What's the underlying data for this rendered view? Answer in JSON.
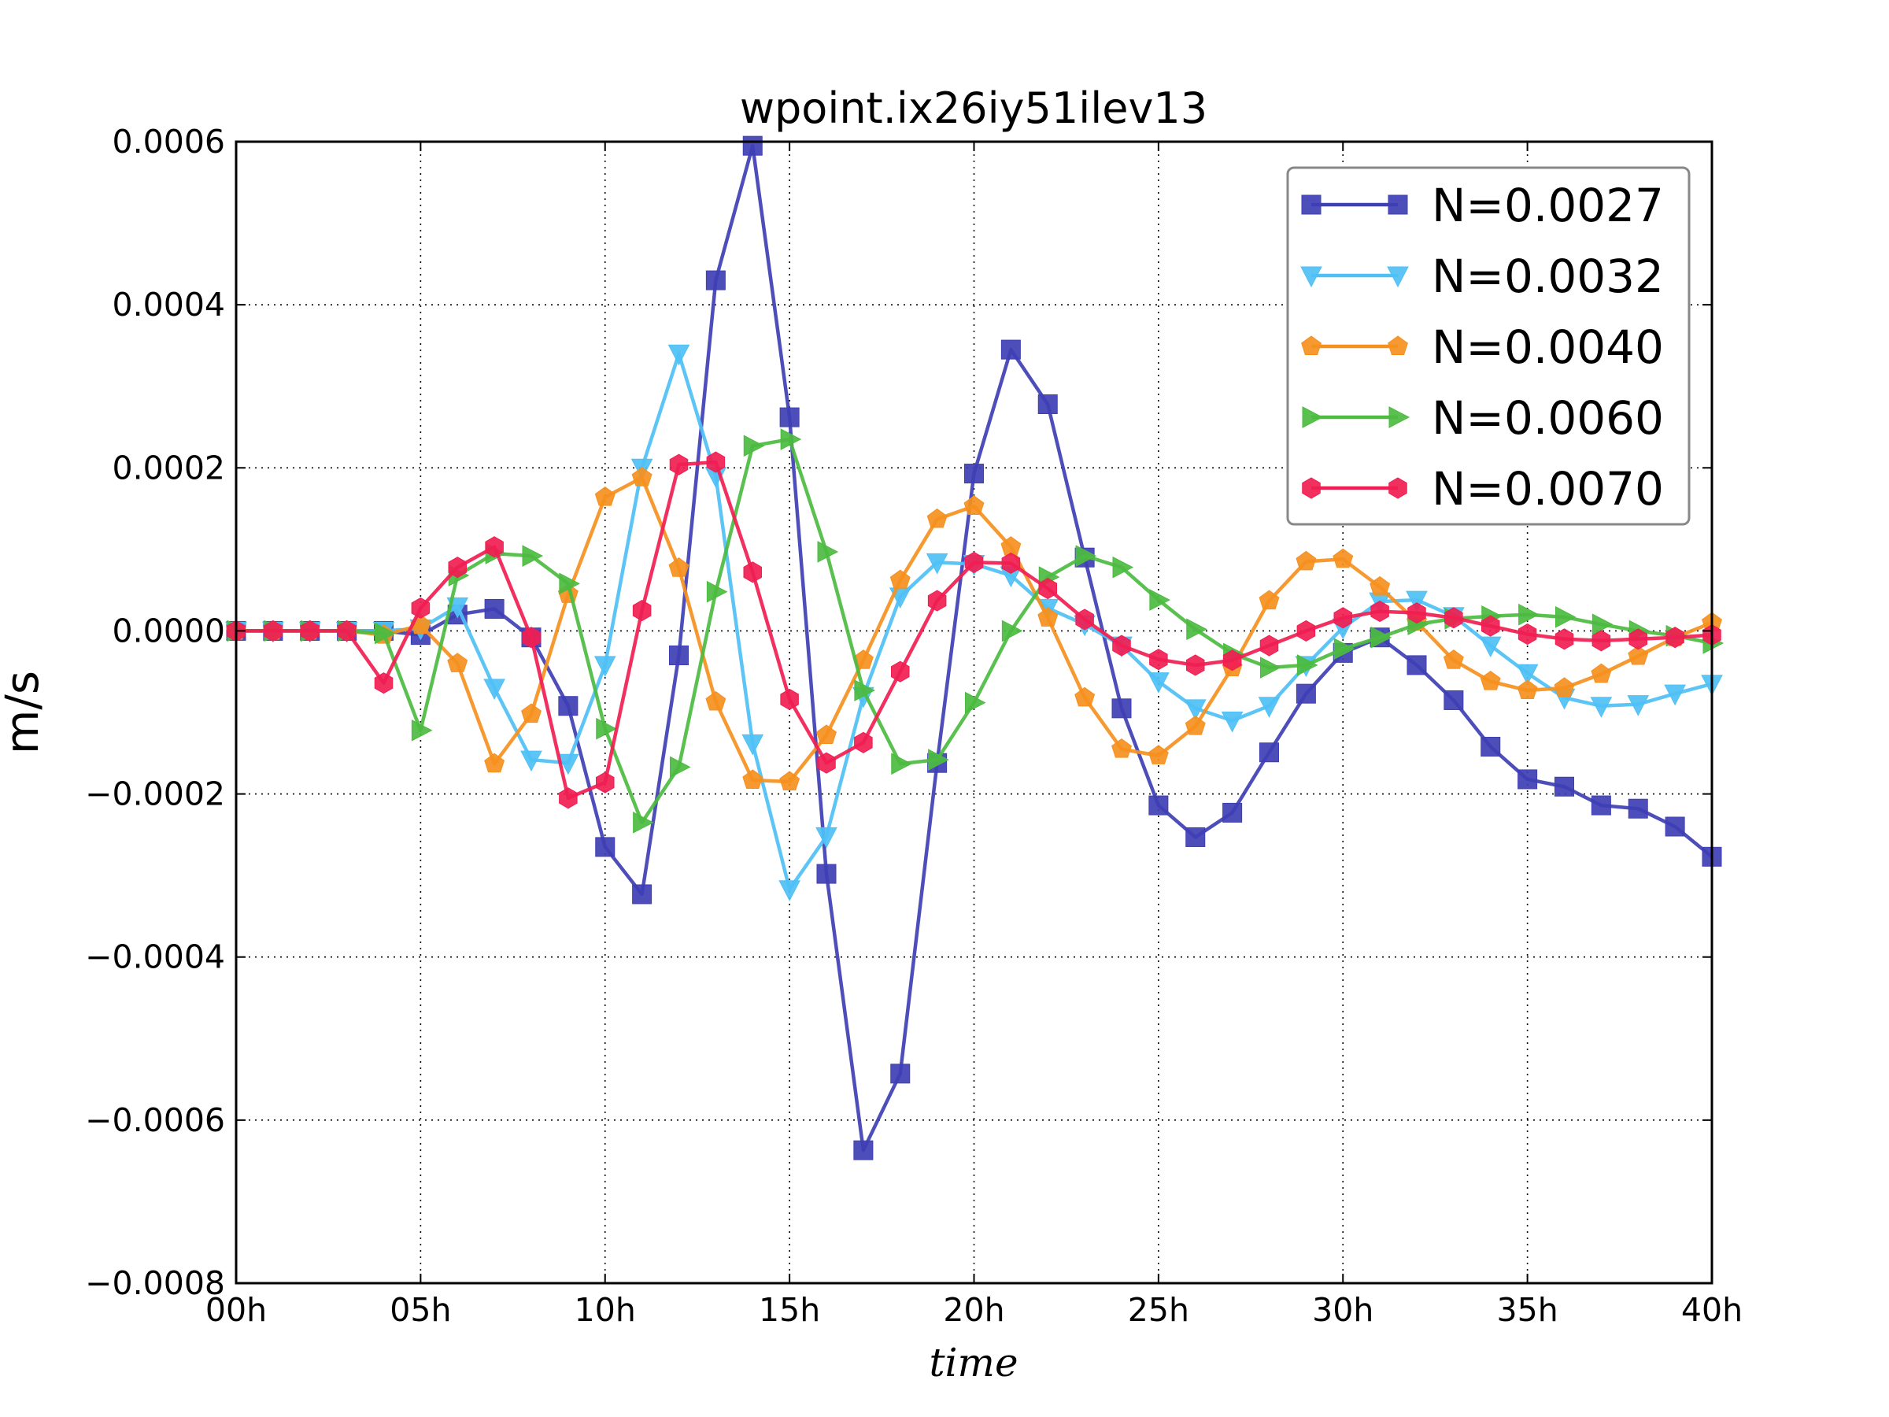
{
  "chart_data": {
    "type": "line",
    "title": "wpoint.ix26iy51ilev13",
    "xlabel": "time",
    "ylabel": "m/s",
    "xlim": [
      0,
      40
    ],
    "ylim": [
      -0.0008,
      0.0006
    ],
    "xticks": [
      {
        "value": 0,
        "label": "00h"
      },
      {
        "value": 5,
        "label": "05h"
      },
      {
        "value": 10,
        "label": "10h"
      },
      {
        "value": 15,
        "label": "15h"
      },
      {
        "value": 20,
        "label": "20h"
      },
      {
        "value": 25,
        "label": "25h"
      },
      {
        "value": 30,
        "label": "30h"
      },
      {
        "value": 35,
        "label": "35h"
      },
      {
        "value": 40,
        "label": "40h"
      }
    ],
    "yticks": [
      {
        "value": -0.0008,
        "label": "−0.0008"
      },
      {
        "value": -0.0006,
        "label": "−0.0006"
      },
      {
        "value": -0.0004,
        "label": "−0.0004"
      },
      {
        "value": -0.0002,
        "label": "−0.0002"
      },
      {
        "value": 0,
        "label": "0.0000"
      },
      {
        "value": 0.0002,
        "label": "0.0002"
      },
      {
        "value": 0.0004,
        "label": "0.0004"
      },
      {
        "value": 0.0006,
        "label": "0.0006"
      }
    ],
    "grid": true,
    "legend_position": "top-right",
    "x": [
      0,
      1,
      2,
      3,
      4,
      5,
      6,
      7,
      8,
      9,
      10,
      11,
      12,
      13,
      14,
      15,
      16,
      17,
      18,
      19,
      20,
      21,
      22,
      23,
      24,
      25,
      26,
      27,
      28,
      29,
      30,
      31,
      32,
      33,
      34,
      35,
      36,
      37,
      38,
      39,
      40
    ],
    "series": [
      {
        "name": "N=0.0027",
        "color": "#3f3fb5",
        "marker": "square",
        "values": [
          0.0,
          0.0,
          0.0,
          0.0,
          0.0,
          -5e-06,
          2e-05,
          2.7e-05,
          -8e-06,
          -9.2e-05,
          -0.000265,
          -0.000323,
          -3e-05,
          0.00043,
          0.000595,
          0.000262,
          -0.000298,
          -0.000637,
          -0.000543,
          -0.000162,
          0.000193,
          0.000345,
          0.000278,
          9e-05,
          -9.5e-05,
          -0.000214,
          -0.000253,
          -0.000223,
          -0.000149,
          -7.7e-05,
          -2.7e-05,
          -8e-06,
          -4.2e-05,
          -8.5e-05,
          -0.000142,
          -0.000182,
          -0.000191,
          -0.000214,
          -0.000218,
          -0.00024,
          -0.000277
        ]
      },
      {
        "name": "N=0.0032",
        "color": "#4fc0f5",
        "marker": "triangle-down",
        "values": [
          0.0,
          0.0,
          0.0,
          0.0,
          0.0,
          3e-06,
          3e-05,
          -7e-05,
          -0.000158,
          -0.000162,
          -4.2e-05,
          0.0002,
          0.00034,
          0.00019,
          -0.000138,
          -0.000317,
          -0.000252,
          -8e-05,
          4.2e-05,
          8.4e-05,
          8.2e-05,
          6.8e-05,
          2.8e-05,
          8e-06,
          -1.8e-05,
          -6.2e-05,
          -9.5e-05,
          -0.00011,
          -9.2e-05,
          -4.2e-05,
          4e-06,
          3.6e-05,
          3.8e-05,
          1.8e-05,
          -1.8e-05,
          -5.2e-05,
          -8.2e-05,
          -9.2e-05,
          -9e-05,
          -7.7e-05,
          -6.5e-05
        ]
      },
      {
        "name": "N=0.0040",
        "color": "#f5901e",
        "marker": "pentagon",
        "values": [
          0.0,
          0.0,
          0.0,
          0.0,
          -5e-06,
          7e-06,
          -4e-05,
          -0.000163,
          -0.000102,
          4.5e-05,
          0.000164,
          0.000188,
          7.7e-05,
          -8.7e-05,
          -0.000183,
          -0.000185,
          -0.000128,
          -3.6e-05,
          6.2e-05,
          0.000137,
          0.000153,
          0.000103,
          1.6e-05,
          -8.2e-05,
          -0.000145,
          -0.000153,
          -0.000117,
          -4.5e-05,
          3.7e-05,
          8.5e-05,
          8.8e-05,
          5.4e-05,
          1.1e-05,
          -3.6e-05,
          -6.2e-05,
          -7.3e-05,
          -7e-05,
          -5.3e-05,
          -3.1e-05,
          -8e-06,
          1e-05
        ]
      },
      {
        "name": "N=0.0060",
        "color": "#4cbb40",
        "marker": "triangle-right",
        "values": [
          0.0,
          0.0,
          0.0,
          0.0,
          -3e-06,
          -0.000122,
          6.8e-05,
          9.5e-05,
          9.2e-05,
          5.8e-05,
          -0.00012,
          -0.000235,
          -0.000167,
          4.8e-05,
          0.000227,
          0.000235,
          9.7e-05,
          -7.3e-05,
          -0.000163,
          -0.000158,
          -8.8e-05,
          0.0,
          6.6e-05,
          9.2e-05,
          7.8e-05,
          3.8e-05,
          2e-06,
          -2.8e-05,
          -4.5e-05,
          -4.2e-05,
          -2.2e-05,
          -8e-06,
          8e-06,
          1.5e-05,
          1.8e-05,
          2e-05,
          1.7e-05,
          8e-06,
          0.0,
          -6e-06,
          -1.5e-05
        ]
      },
      {
        "name": "N=0.0070",
        "color": "#f01e53",
        "marker": "hexagon",
        "values": [
          0.0,
          0.0,
          0.0,
          0.0,
          -6.4e-05,
          2.8e-05,
          7.8e-05,
          0.000103,
          -8e-06,
          -0.000205,
          -0.000186,
          2.5e-05,
          0.000204,
          0.000207,
          7.2e-05,
          -8.4e-05,
          -0.000162,
          -0.000137,
          -5e-05,
          3.7e-05,
          8.4e-05,
          8.3e-05,
          5.2e-05,
          1.4e-05,
          -1.8e-05,
          -3.5e-05,
          -4.2e-05,
          -3.6e-05,
          -1.8e-05,
          0.0,
          1.6e-05,
          2.4e-05,
          2.2e-05,
          1.6e-05,
          6e-06,
          -4e-06,
          -1e-05,
          -1.2e-05,
          -1e-05,
          -8e-06,
          -5e-06
        ]
      }
    ]
  }
}
